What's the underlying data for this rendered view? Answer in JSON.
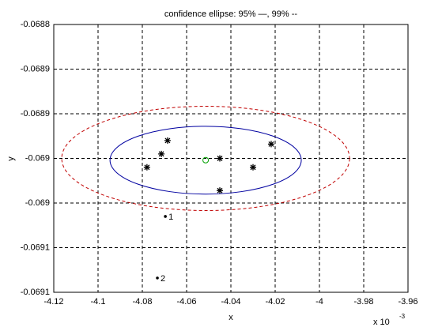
{
  "chart_data": {
    "type": "scatter",
    "title": "confidence ellipse: 95% —, 99% --",
    "xlabel": "x",
    "ylabel": "y",
    "x_multiplier": "x 10",
    "x_exponent": "-3",
    "xlim": [
      -4.12,
      -3.96
    ],
    "xticks": [
      -4.12,
      -4.1,
      -4.08,
      -4.06,
      -4.04,
      -4.02,
      -4,
      -3.98,
      -3.96
    ],
    "ylim": [
      -0.0691,
      -0.0688
    ],
    "yticks": [
      {
        "value": -0.0688,
        "label": "-0.0688"
      },
      {
        "value": -0.06885,
        "label": "-0.0689"
      },
      {
        "value": -0.0689,
        "label": "-0.0689"
      },
      {
        "value": -0.06895,
        "label": "-0.069"
      },
      {
        "value": -0.069,
        "label": "-0.069"
      },
      {
        "value": -0.06905,
        "label": "-0.0691"
      },
      {
        "value": -0.0691,
        "label": "-0.0691"
      }
    ],
    "grid": true,
    "points": {
      "color": "#000000",
      "x": [
        -4.0779,
        -4.0714,
        -4.0686,
        -4.045,
        -4.045,
        -4.03,
        -4.0218
      ],
      "y": [
        -0.06896,
        -0.068945,
        -0.06893,
        -0.06895,
        -0.068986,
        -0.06896,
        -0.068934
      ]
    },
    "labeled_points": [
      {
        "label": "1",
        "x": -4.0696,
        "y": -0.069015
      },
      {
        "label": "2",
        "x": -4.0732,
        "y": -0.069084
      }
    ],
    "center": {
      "color": "#00a000",
      "x": -4.0514,
      "y": -0.068952
    },
    "ellipses": [
      {
        "color": "#0000a0",
        "dashed": false,
        "cx": -4.0514,
        "cy": -0.068952,
        "rx": 0.0432,
        "ry": 3.8e-05
      },
      {
        "color": "#c00000",
        "dashed": true,
        "cx": -4.0514,
        "cy": -0.06895,
        "rx": 0.065,
        "ry": 5.84e-05
      }
    ]
  }
}
